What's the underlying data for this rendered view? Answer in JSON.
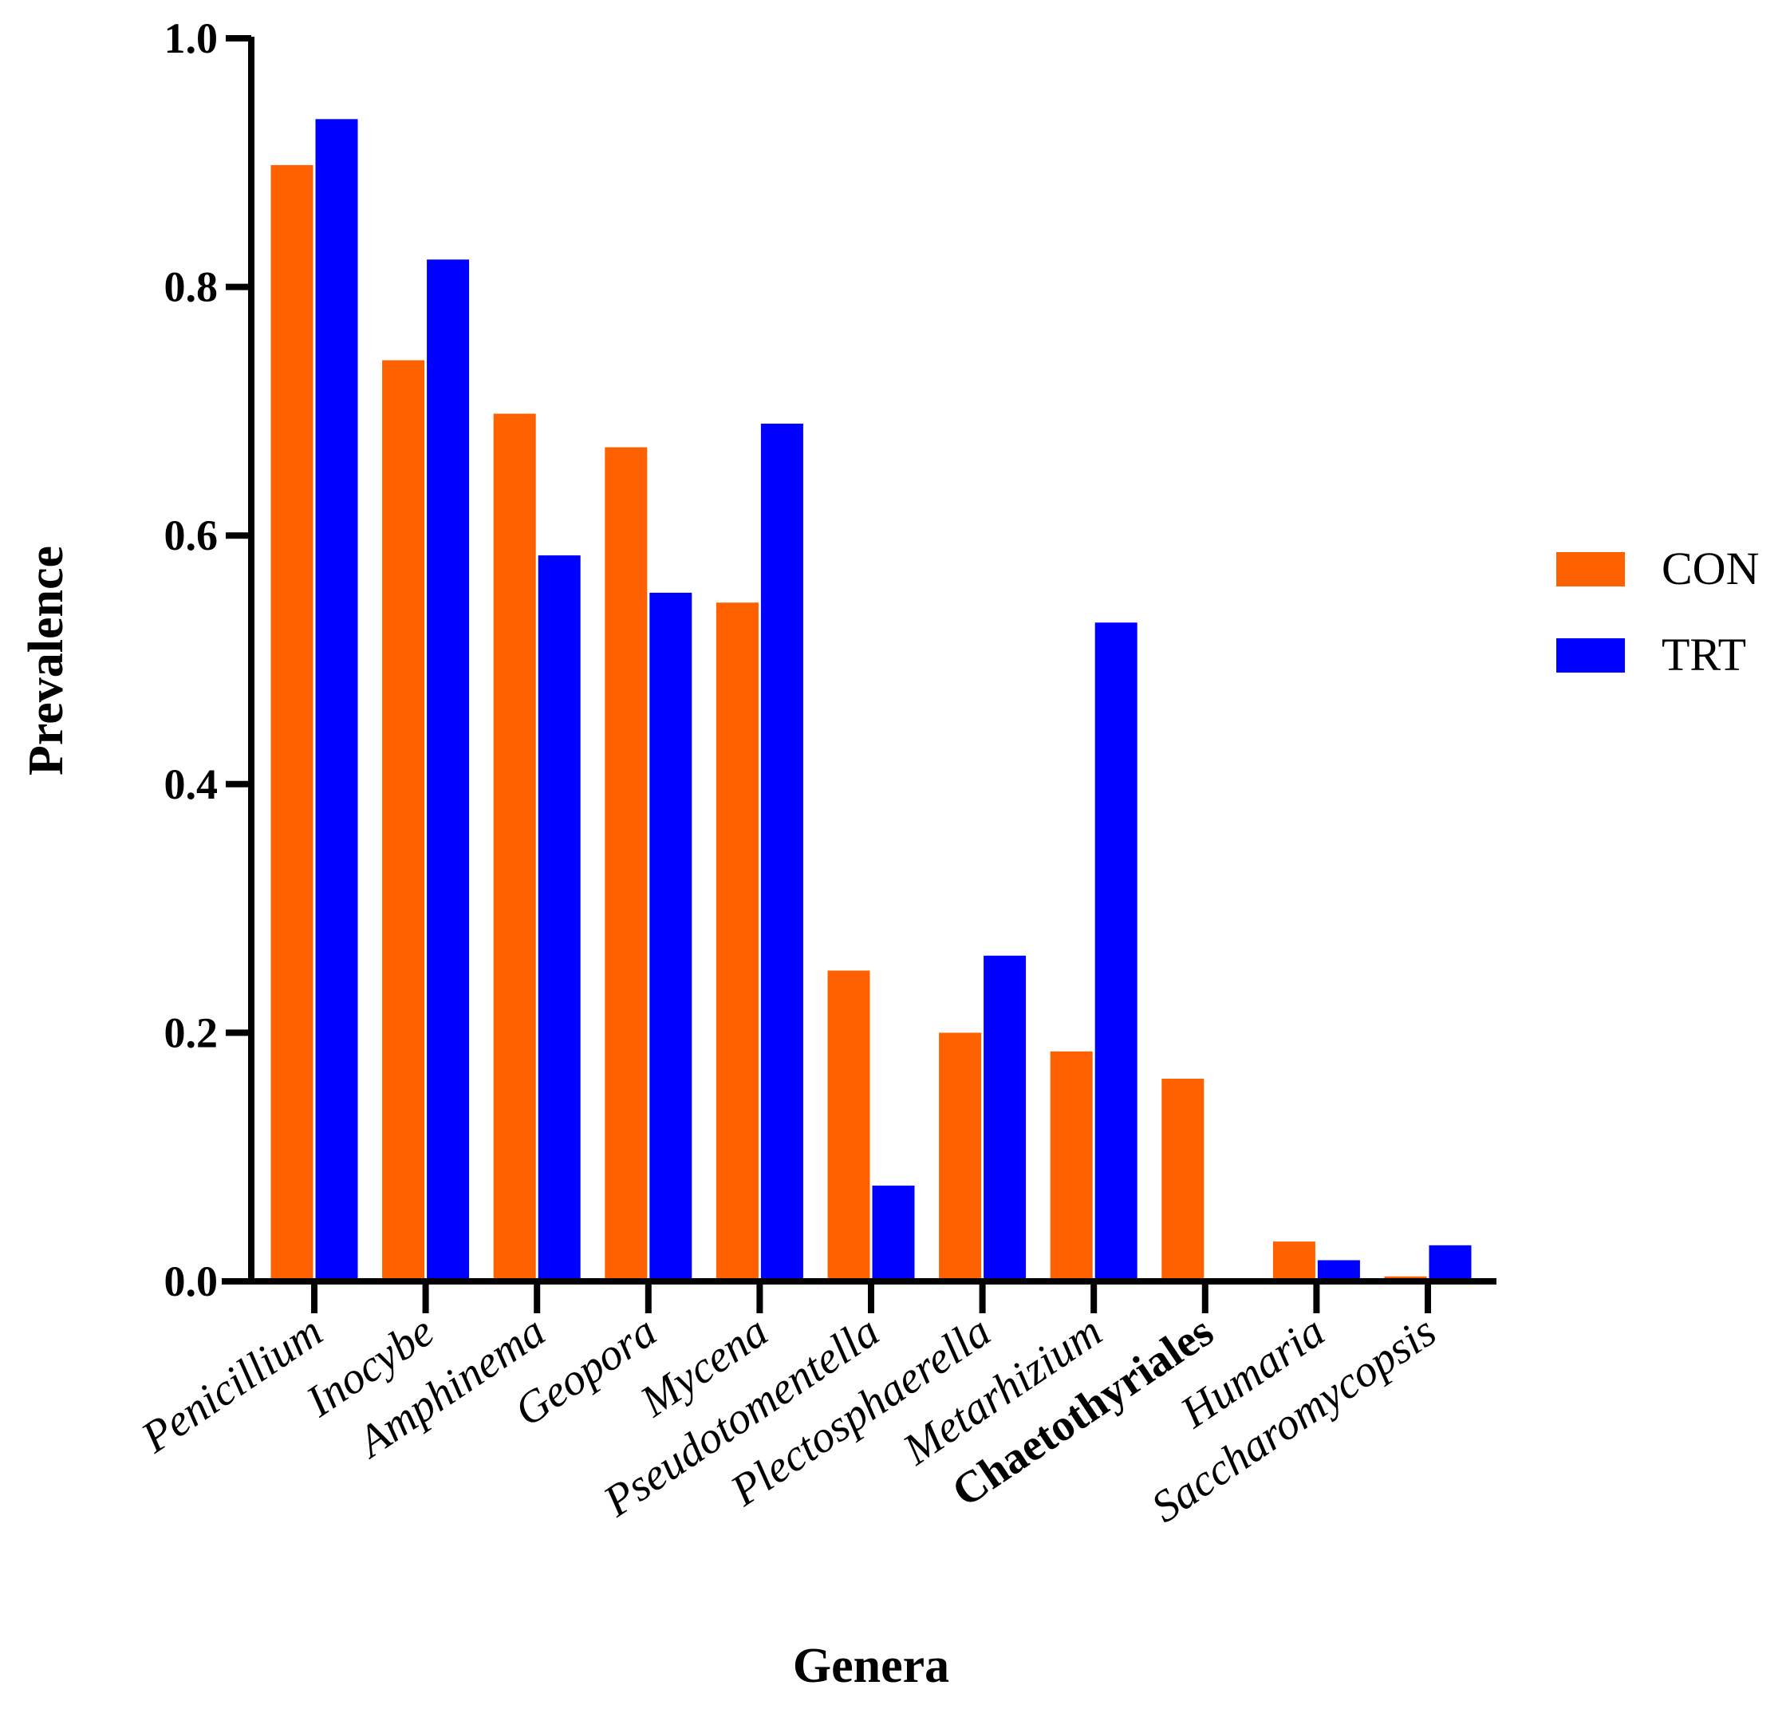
{
  "chart_data": {
    "type": "bar",
    "title": "",
    "xlabel": "Genera",
    "ylabel": "Prevalence",
    "ylim": [
      0,
      1.0
    ],
    "yticks": [
      "0.0",
      "0.2",
      "0.4",
      "0.6",
      "0.8",
      "1.0"
    ],
    "categories": [
      "Penicillium",
      "Inocybe",
      "Amphinema",
      "Geopora",
      "Mycena",
      "Pseudotomentella",
      "Plectosphaerella",
      "Metarhizium",
      "Chaetothyriales",
      "Humaria",
      "Saccharomycopsis"
    ],
    "category_style": [
      "italic",
      "italic",
      "italic",
      "italic",
      "italic",
      "italic",
      "italic",
      "italic",
      "bold",
      "italic",
      "italic"
    ],
    "series": [
      {
        "name": "CON",
        "color": "#FF6000",
        "values": [
          0.898,
          0.741,
          0.698,
          0.671,
          0.546,
          0.25,
          0.2,
          0.185,
          0.163,
          0.032,
          0.004
        ]
      },
      {
        "name": "TRT",
        "color": "#0000FF",
        "values": [
          0.935,
          0.822,
          0.584,
          0.554,
          0.69,
          0.077,
          0.262,
          0.53,
          0.0,
          0.017,
          0.029
        ]
      }
    ],
    "legend_position": "right",
    "grid": false
  }
}
